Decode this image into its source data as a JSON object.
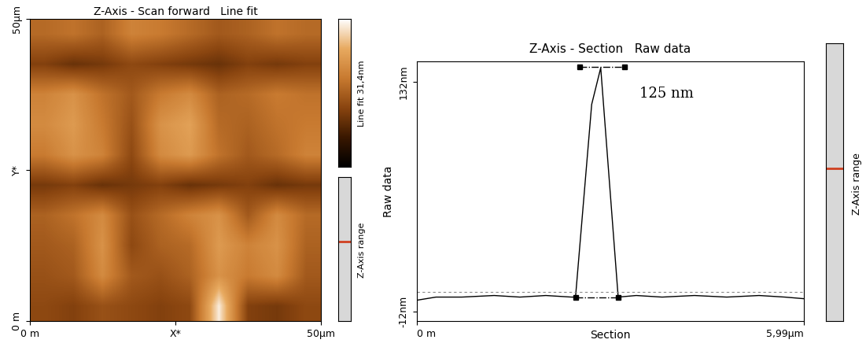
{
  "chart_data": [
    {
      "type": "heatmap",
      "title": "Z-Axis - Scan forward   Line fit",
      "xlim": [
        0,
        50
      ],
      "ylim": [
        0,
        50
      ],
      "xticks": [
        {
          "value": 0,
          "label": "0 m"
        },
        {
          "value": 25,
          "label": "X*"
        },
        {
          "value": 50,
          "label": "50µm"
        }
      ],
      "yticks": [
        {
          "value": 0,
          "label": "0 m"
        },
        {
          "value": 25,
          "label": "Y*"
        },
        {
          "value": 50,
          "label": "50µm"
        }
      ],
      "cells": [
        [
          17,
          18,
          16,
          20,
          19,
          17,
          15,
          16,
          18,
          17
        ],
        [
          12,
          10,
          11,
          13,
          12,
          11,
          10,
          12,
          11,
          12
        ],
        [
          20,
          22,
          18,
          15,
          19,
          21,
          16,
          17,
          19,
          18
        ],
        [
          21,
          23,
          19,
          14,
          22,
          24,
          17,
          16,
          18,
          19
        ],
        [
          19,
          22,
          20,
          13,
          21,
          23,
          18,
          15,
          17,
          20
        ],
        [
          11,
          12,
          10,
          11,
          12,
          10,
          11,
          12,
          10,
          11
        ],
        [
          16,
          18,
          21,
          14,
          17,
          20,
          22,
          15,
          21,
          17
        ],
        [
          15,
          16,
          22,
          13,
          16,
          17,
          23,
          20,
          22,
          16
        ],
        [
          14,
          15,
          21,
          15,
          14,
          16,
          22,
          19,
          21,
          15
        ],
        [
          13,
          12,
          14,
          13,
          12,
          13,
          30,
          12,
          11,
          13
        ]
      ],
      "colorbar_label": "Line fit 31,4nm",
      "colorbar_range": [
        0,
        31.4
      ],
      "range_bar_label": "Z-Axis range"
    },
    {
      "type": "line",
      "title": "Z-Axis - Section   Raw data",
      "x_label": "Section",
      "y_label": "Raw data",
      "x": [
        0,
        0.3,
        0.7,
        1.2,
        1.6,
        2.0,
        2.4,
        2.46,
        2.71,
        2.85,
        3.12,
        3.4,
        3.8,
        4.3,
        4.8,
        5.3,
        5.7,
        5.99
      ],
      "values": [
        -5,
        -3,
        -3,
        -2,
        -3,
        -2,
        -3,
        -3,
        118,
        141,
        -3,
        -2,
        -3,
        -2,
        -3,
        -2,
        -3,
        -4
      ],
      "color": "#000000",
      "xlim": [
        0,
        5.99
      ],
      "ylim": [
        -18,
        145
      ],
      "xticks": [
        {
          "value": 0,
          "label": "0 m"
        },
        {
          "value": 5.99,
          "label": "5,99µm"
        }
      ],
      "yticks": [
        {
          "value": -12,
          "label": "-12nm"
        },
        {
          "value": 132,
          "label": "132nm"
        }
      ],
      "cursors": [
        {
          "x": [
            2.52,
            3.22
          ],
          "y": [
            141.7,
            141.7
          ]
        },
        {
          "x": [
            2.46,
            3.12
          ],
          "y": [
            -3,
            -3
          ]
        }
      ],
      "reference_line": 0,
      "annotation": {
        "text": "125 nm",
        "x": 3.45,
        "y": 125
      },
      "range_bar_label": "Z-Axis range"
    }
  ]
}
